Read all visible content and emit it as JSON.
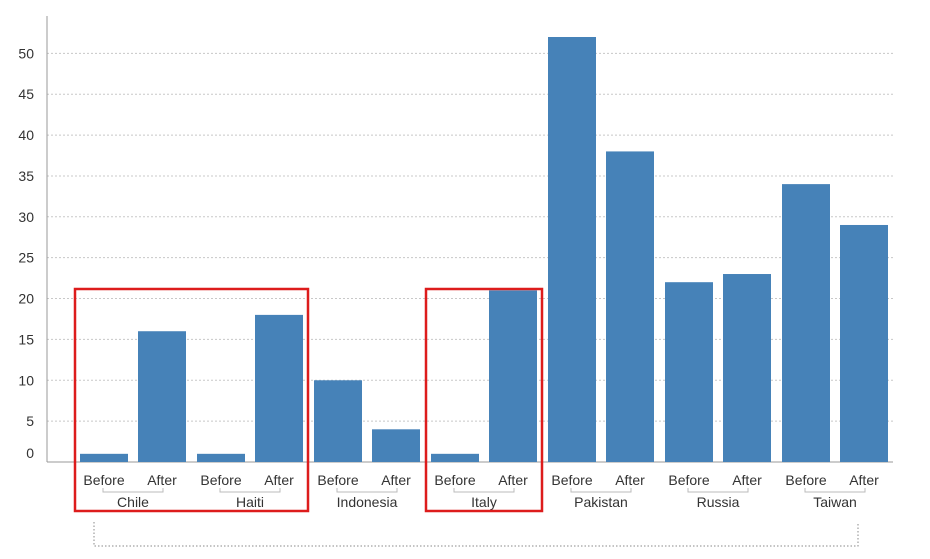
{
  "colors": {
    "bar": "#4682b8",
    "grid": "#c8c8c8",
    "axis": "#999999",
    "highlight": "#dd1c1c",
    "bracket": "#888888"
  },
  "chart_data": {
    "type": "bar",
    "title": "",
    "xlabel": "",
    "ylabel": "",
    "ylim": [
      0,
      52
    ],
    "yticks": [
      0,
      5,
      10,
      15,
      20,
      25,
      30,
      35,
      40,
      45,
      50
    ],
    "grid": true,
    "groups": [
      {
        "name": "Chile",
        "bars": [
          {
            "label": "Before",
            "value": 1
          },
          {
            "label": "After",
            "value": 16
          }
        ]
      },
      {
        "name": "Haiti",
        "bars": [
          {
            "label": "Before",
            "value": 1
          },
          {
            "label": "After",
            "value": 18
          }
        ]
      },
      {
        "name": "Indonesia",
        "bars": [
          {
            "label": "Before",
            "value": 10
          },
          {
            "label": "After",
            "value": 4
          }
        ]
      },
      {
        "name": "Italy",
        "bars": [
          {
            "label": "Before",
            "value": 1
          },
          {
            "label": "After",
            "value": 21
          }
        ]
      },
      {
        "name": "Pakistan",
        "bars": [
          {
            "label": "Before",
            "value": 52
          },
          {
            "label": "After",
            "value": 38
          }
        ]
      },
      {
        "name": "Russia",
        "bars": [
          {
            "label": "Before",
            "value": 22
          },
          {
            "label": "After",
            "value": 23
          }
        ]
      },
      {
        "name": "Taiwan",
        "bars": [
          {
            "label": "Before",
            "value": 34
          },
          {
            "label": "After",
            "value": 29
          }
        ]
      }
    ],
    "highlighted_groups": [
      [
        "Chile",
        "Haiti"
      ],
      [
        "Italy"
      ]
    ]
  }
}
